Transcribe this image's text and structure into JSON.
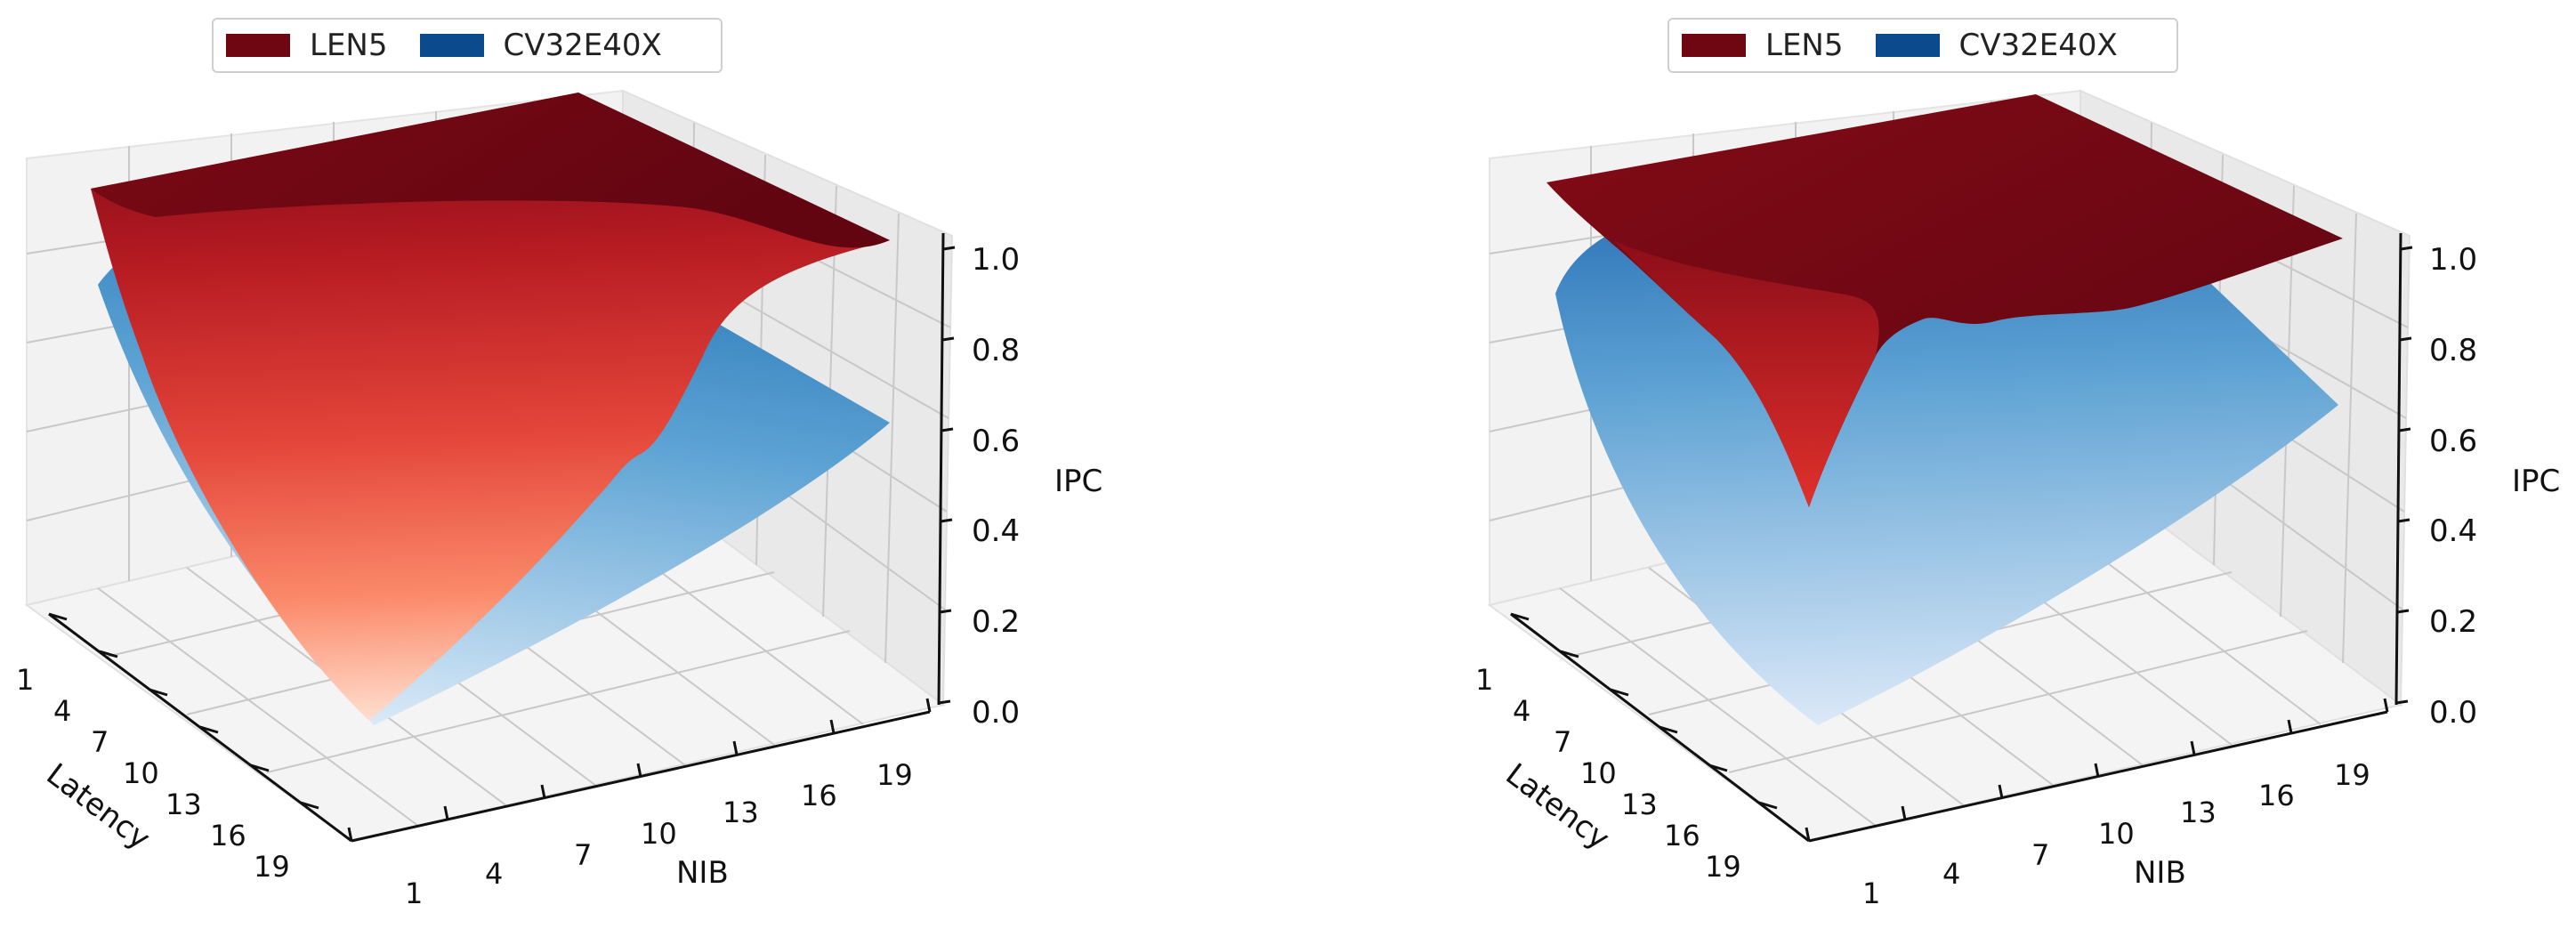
{
  "colors": {
    "len5": "#6e0712",
    "cv32e40x": "#0b4a8c"
  },
  "legend": [
    {
      "label": "LEN5",
      "color": "#6e0712"
    },
    {
      "label": "CV32E40X",
      "color": "#0b4a8c"
    }
  ],
  "chart_data": [
    {
      "type": "surface",
      "xlabel": "Latency",
      "ylabel": "NIB",
      "zlabel": "IPC",
      "xticks": [
        "1",
        "4",
        "7",
        "10",
        "13",
        "16",
        "19"
      ],
      "yticks": [
        "1",
        "4",
        "7",
        "10",
        "13",
        "16",
        "19"
      ],
      "zticks": [
        "0.0",
        "0.2",
        "0.4",
        "0.6",
        "0.8",
        "1.0"
      ],
      "zlim": [
        0,
        1
      ],
      "legend_placement": "top-center",
      "series": [
        {
          "name": "LEN5",
          "description_values": "IPC surface rising to ~1.0 at high NIB / low latency, min ~0.02 at Latency 19, NIB 1"
        },
        {
          "name": "CV32E40X",
          "description_values": "IPC surface from ~0.02 at Latency 19, NIB 1 to ~0.75 at Latency 1, NIB 19"
        }
      ]
    },
    {
      "type": "surface",
      "xlabel": "Latency",
      "ylabel": "NIB",
      "zlabel": "IPC",
      "xticks": [
        "1",
        "4",
        "7",
        "10",
        "13",
        "16",
        "19"
      ],
      "yticks": [
        "1",
        "4",
        "7",
        "10",
        "13",
        "16",
        "19"
      ],
      "zticks": [
        "0.0",
        "0.2",
        "0.4",
        "0.6",
        "0.8",
        "1.0"
      ],
      "zlim": [
        0,
        1
      ],
      "legend_placement": "top-center",
      "series": [
        {
          "name": "LEN5",
          "description_values": "IPC surface near 1.0 except a dip to ~0.5 around Latency 19, NIB 1"
        },
        {
          "name": "CV32E40X",
          "description_values": "IPC surface from ~0.02 at Latency 19, NIB 1 to ~0.95 at Latency 1, NIB 19"
        }
      ]
    }
  ]
}
